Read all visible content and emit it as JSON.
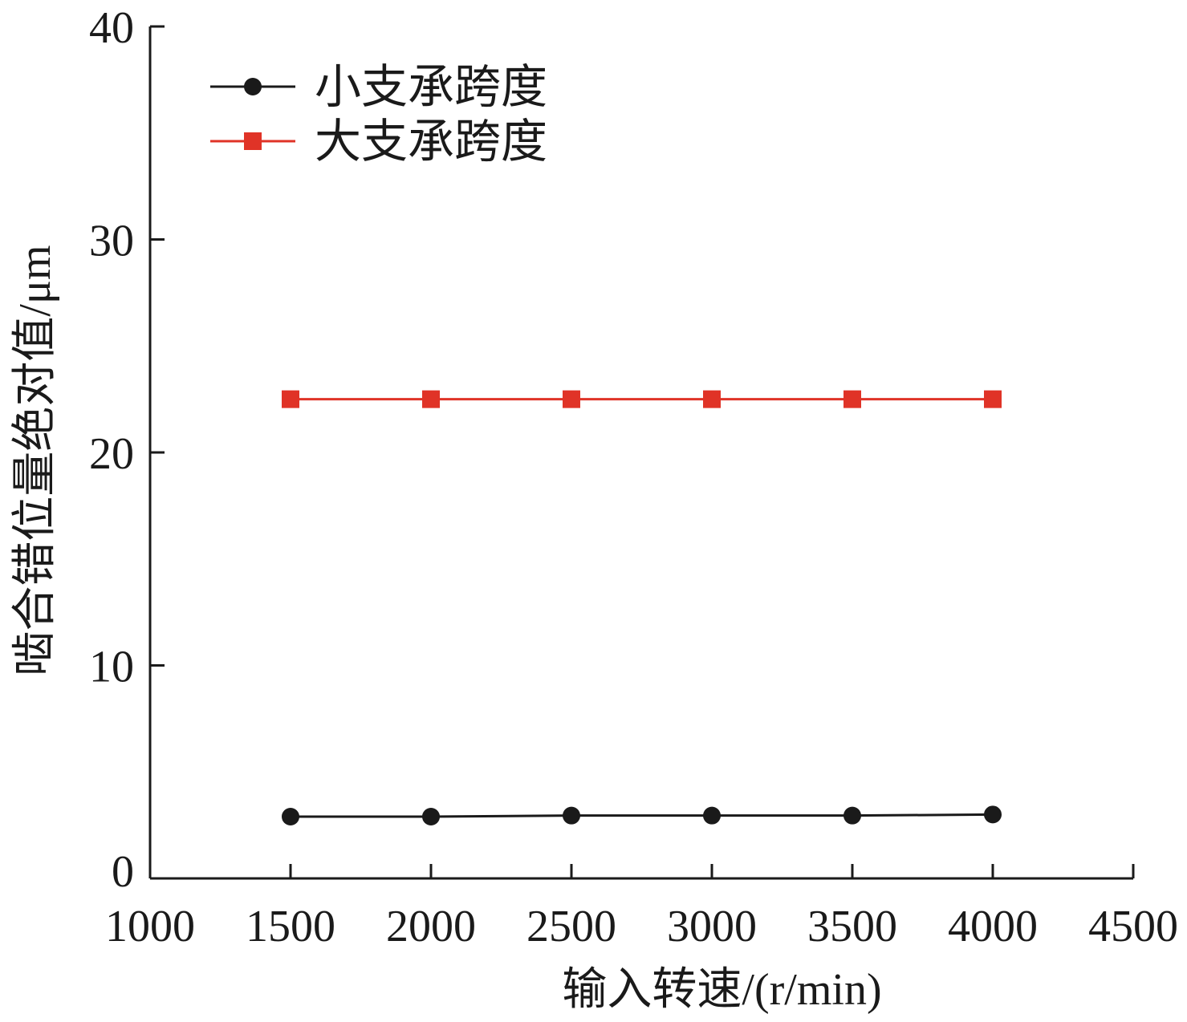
{
  "chart_data": {
    "type": "line",
    "xlabel": "输入转速/(r/min)",
    "ylabel": "啮合错位量绝对值/μm",
    "xlim": [
      1000,
      4500
    ],
    "ylim": [
      0,
      40
    ],
    "xticks": [
      1000,
      1500,
      2000,
      2500,
      3000,
      3500,
      4000,
      4500
    ],
    "yticks": [
      0,
      10,
      20,
      30,
      40
    ],
    "x": [
      1500,
      2000,
      2500,
      3000,
      3500,
      4000
    ],
    "grid": false,
    "legend_position": "top-left",
    "series": [
      {
        "name": "小支承跨度",
        "values": [
          2.9,
          2.9,
          2.95,
          2.95,
          2.95,
          3.0
        ],
        "color": "#1a1a1a",
        "marker": "circle"
      },
      {
        "name": "大支承跨度",
        "values": [
          22.5,
          22.5,
          22.5,
          22.5,
          22.5,
          22.5
        ],
        "color": "#e03327",
        "marker": "square"
      }
    ]
  }
}
